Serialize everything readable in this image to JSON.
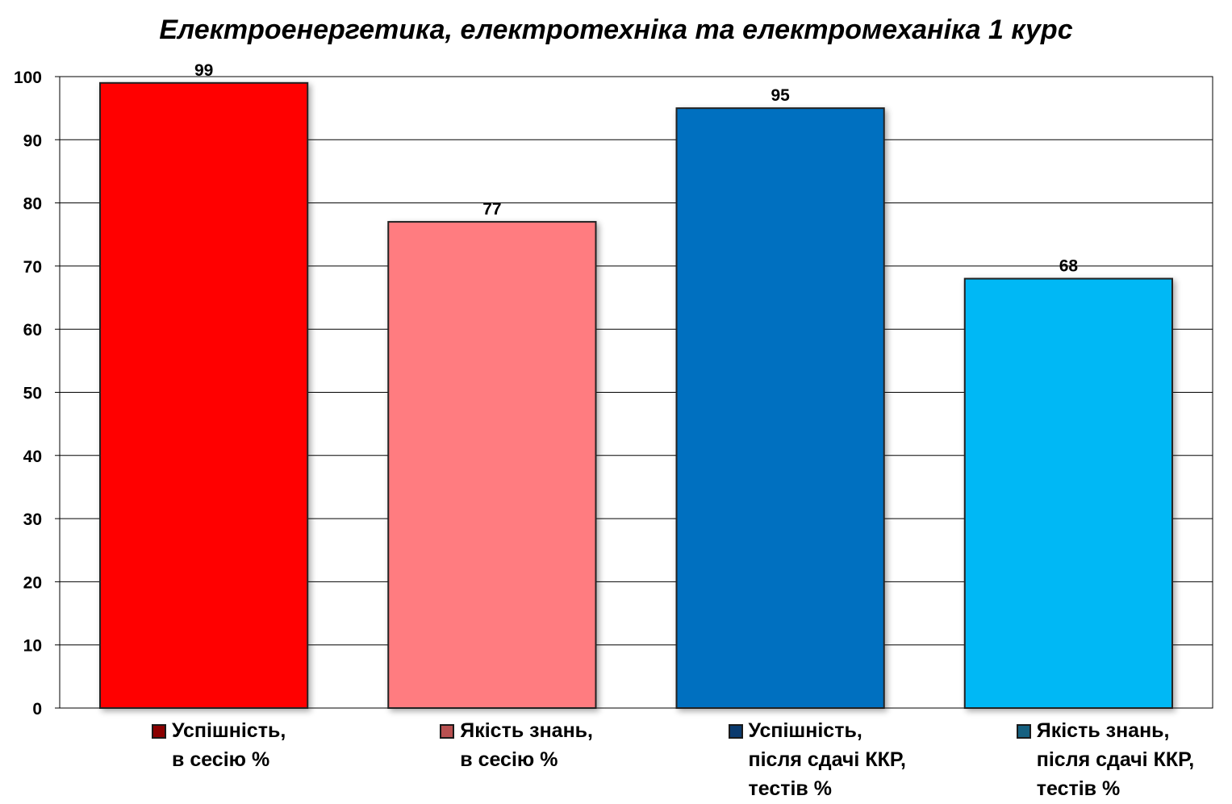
{
  "chart_data": {
    "type": "bar",
    "title": "Електроенергетика, електротехніка та електромеханіка 1 курс",
    "categories": [
      "Успішність,\nв сесію %",
      "Якість знань,\nв сесію %",
      "Успішність,\nпісля сдачі ККР,\nтестів %",
      "Якість знань,\nпісля сдачі ККР,\nтестів %"
    ],
    "values": [
      99,
      77,
      95,
      68
    ],
    "colors": [
      "#ff0000",
      "#ff7c80",
      "#0070c0",
      "#00b8f5"
    ],
    "swatch_colors": [
      "#8b0000",
      "#b85050",
      "#0a3a6e",
      "#156080"
    ],
    "ylim": [
      0,
      100
    ],
    "yticks": [
      "0",
      "10",
      "20",
      "30",
      "40",
      "50",
      "60",
      "70",
      "80",
      "90",
      "100"
    ],
    "grid": true,
    "legend_position": "bottom",
    "data_labels": true
  }
}
